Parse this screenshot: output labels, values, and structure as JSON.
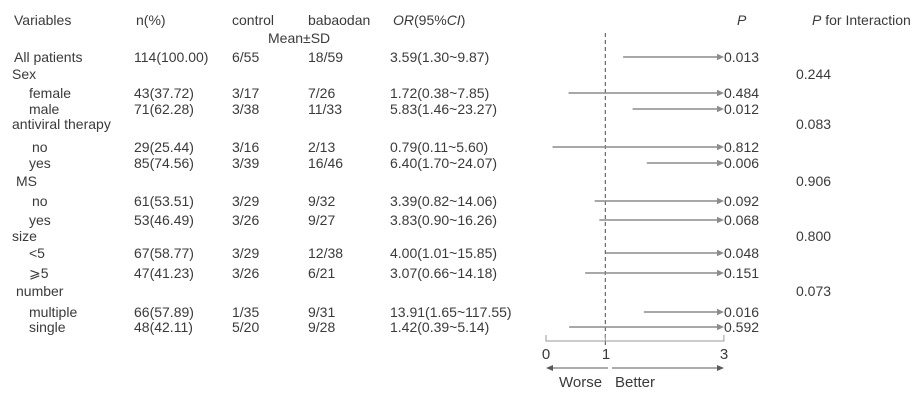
{
  "chart_data": {
    "type": "forest",
    "title": "",
    "columns": {
      "variables": "Variables",
      "n_pct": "n(%)",
      "control": "control",
      "babaodan": "babaodan",
      "mean_sd": "Mean±SD",
      "or_ci": {
        "or": "OR",
        "open": "(95%",
        "ci": "CI",
        "close": ")"
      },
      "p": "P",
      "p_interaction": {
        "p": "P",
        "rest": " for Interaction"
      }
    },
    "or_axis": {
      "tick_labels": [
        "0",
        "1",
        "3"
      ],
      "ticks": [
        0,
        1,
        3
      ],
      "range": [
        0,
        3
      ],
      "reference_line": 1,
      "arrow_truncation": 3,
      "worse_label": "Worse",
      "better_label": "Better"
    },
    "rows": [
      {
        "type": "data",
        "label": "All patients",
        "n_pct": "114(100.00)",
        "control": "6/55",
        "babaodan": "18/59",
        "or_ci": "3.59(1.30~9.87)",
        "or": 3.59,
        "ci_low": 1.3,
        "ci_high": 9.87,
        "p": "0.013"
      },
      {
        "type": "group",
        "label": "Sex",
        "p_interaction": "0.244"
      },
      {
        "type": "data",
        "label": "female",
        "n_pct": "43(37.72)",
        "control": "3/17",
        "babaodan": "7/26",
        "or_ci": "1.72(0.38~7.85)",
        "or": 1.72,
        "ci_low": 0.38,
        "ci_high": 7.85,
        "p": "0.484"
      },
      {
        "type": "data",
        "label": "male",
        "n_pct": "71(62.28)",
        "control": "3/38",
        "babaodan": "11/33",
        "or_ci": "5.83(1.46~23.27)",
        "or": 5.83,
        "ci_low": 1.46,
        "ci_high": 23.27,
        "p": "0.012"
      },
      {
        "type": "group",
        "label": "antiviral therapy",
        "p_interaction": "0.083"
      },
      {
        "type": "data",
        "label": "no",
        "n_pct": "29(25.44)",
        "control": "3/16",
        "babaodan": "2/13",
        "or_ci": "0.79(0.11~5.60)",
        "or": 0.79,
        "ci_low": 0.11,
        "ci_high": 5.6,
        "p": "0.812"
      },
      {
        "type": "data",
        "label": "yes",
        "n_pct": "85(74.56)",
        "control": "3/39",
        "babaodan": "16/46",
        "or_ci": "6.40(1.70~24.07)",
        "or": 6.4,
        "ci_low": 1.7,
        "ci_high": 24.07,
        "p": "0.006"
      },
      {
        "type": "group",
        "label": "MS",
        "p_interaction": "0.906"
      },
      {
        "type": "data",
        "label": "no",
        "n_pct": "61(53.51)",
        "control": "3/29",
        "babaodan": "9/32",
        "or_ci": "3.39(0.82~14.06)",
        "or": 3.39,
        "ci_low": 0.82,
        "ci_high": 14.06,
        "p": "0.092"
      },
      {
        "type": "data",
        "label": "yes",
        "n_pct": "53(46.49)",
        "control": "3/26",
        "babaodan": "9/27",
        "or_ci": "3.83(0.90~16.26)",
        "or": 3.83,
        "ci_low": 0.9,
        "ci_high": 16.26,
        "p": "0.068"
      },
      {
        "type": "group",
        "label": "size",
        "p_interaction": "0.800"
      },
      {
        "type": "data",
        "label": "<5",
        "n_pct": "67(58.77)",
        "control": "3/29",
        "babaodan": "12/38",
        "or_ci": "4.00(1.01~15.85)",
        "or": 4.0,
        "ci_low": 1.01,
        "ci_high": 15.85,
        "p": "0.048"
      },
      {
        "type": "data",
        "label": "⩾5",
        "n_pct": "47(41.23)",
        "control": "3/26",
        "babaodan": "6/21",
        "or_ci": "3.07(0.66~14.18)",
        "or": 3.07,
        "ci_low": 0.66,
        "ci_high": 14.18,
        "p": "0.151"
      },
      {
        "type": "group",
        "label": "number",
        "p_interaction": "0.073"
      },
      {
        "type": "data",
        "label": "multiple",
        "n_pct": "66(57.89)",
        "control": "1/35",
        "babaodan": "9/31",
        "or_ci": "13.91(1.65~117.55)",
        "or": 13.91,
        "ci_low": 1.65,
        "ci_high": 117.55,
        "p": "0.016"
      },
      {
        "type": "data",
        "label": "single",
        "n_pct": "48(42.11)",
        "control": "5/20",
        "babaodan": "9/28",
        "or_ci": "1.42(0.39~5.14)",
        "or": 1.42,
        "ci_low": 0.39,
        "ci_high": 5.14,
        "p": "0.592"
      }
    ],
    "colors": {
      "text": "#3a3a3a",
      "ci_line": "#8c8c8c",
      "reference_line": "#4a4a4a",
      "axis_line": "#9a9a9a",
      "direction_arrow": "#5a5a5a"
    }
  }
}
